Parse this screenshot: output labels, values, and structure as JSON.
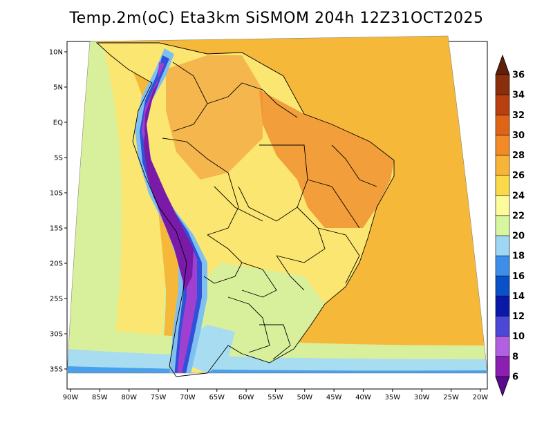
{
  "title": "Temp.2m(oC) Eta3km SiSMOM 204h 12Z31OCT2025",
  "lat_labels": [
    "10N",
    "5N",
    "EQ",
    "5S",
    "10S",
    "15S",
    "20S",
    "25S",
    "30S",
    "35S"
  ],
  "lon_labels": [
    "90W",
    "85W",
    "80W",
    "75W",
    "70W",
    "65W",
    "60W",
    "55W",
    "50W",
    "45W",
    "40W",
    "35W",
    "30W",
    "25W",
    "20W"
  ],
  "colorbar": {
    "labels": [
      "6",
      "8",
      "10",
      "12",
      "14",
      "16",
      "18",
      "20",
      "22",
      "24",
      "26",
      "28",
      "30",
      "32",
      "34",
      "36"
    ],
    "colors": [
      "#5a0a8c",
      "#8a1fb0",
      "#b060e0",
      "#4b48d8",
      "#0a18a8",
      "#0a50c8",
      "#3c8ee8",
      "#9ed6f4",
      "#d8f5a0",
      "#fdfb9a",
      "#fad94a",
      "#f8b436",
      "#f28a28",
      "#e06418",
      "#b84010",
      "#8a2e0c",
      "#5e2008"
    ]
  },
  "legend": {
    "ocean_color": "#f6b838",
    "land_color": "#fbe672",
    "hot_color": "#f09030",
    "andes_colors": [
      "#7a1aa8",
      "#a040d0",
      "#3050d8",
      "#80c0f0"
    ],
    "south_colors": [
      "#d8f09c",
      "#a8dcf0",
      "#4aa0ea"
    ]
  }
}
